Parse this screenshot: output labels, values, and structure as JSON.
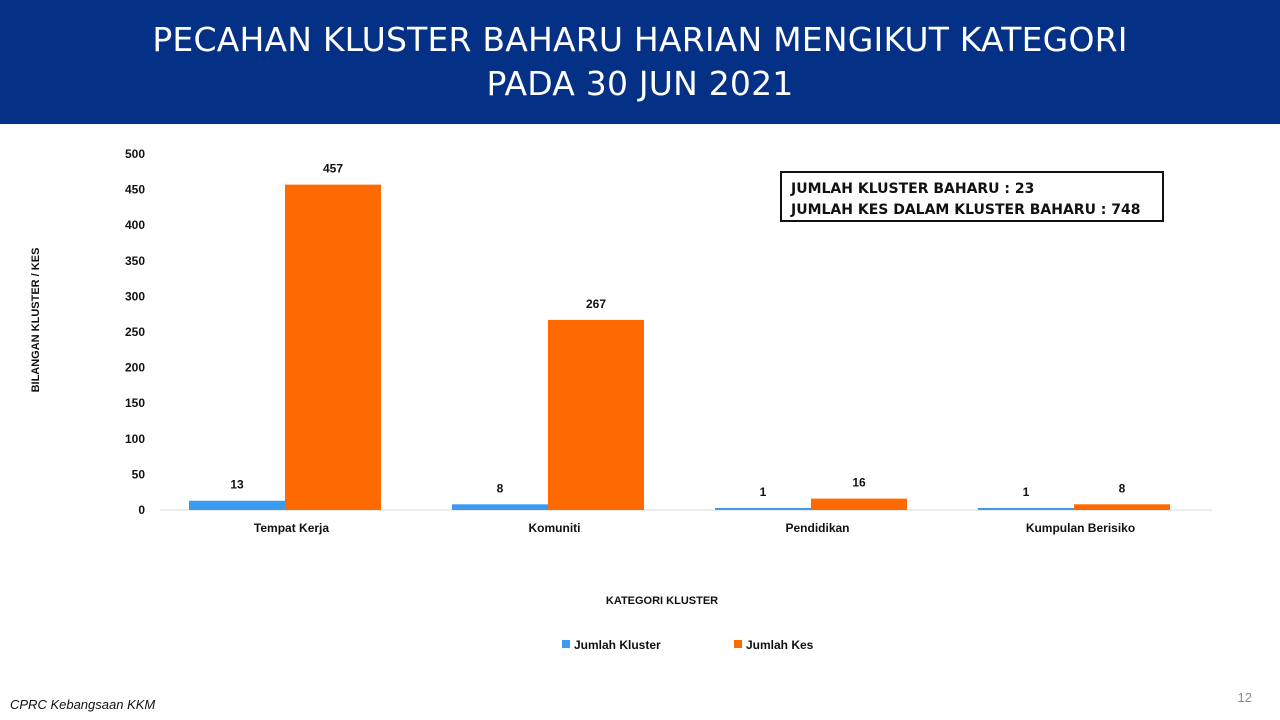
{
  "header": {
    "title_line1": "PECAHAN KLUSTER BAHARU HARIAN MENGIKUT KATEGORI",
    "title_line2": "PADA 30 JUN 2021"
  },
  "summary_box": {
    "line1": "JUMLAH KLUSTER BAHARU : 23",
    "line2": "JUMLAH KES DALAM KLUSTER BAHARU : 748"
  },
  "footer": {
    "source": "CPRC Kebangsaan KKM",
    "page_number": "12"
  },
  "colors": {
    "header_bg": "#043186",
    "series_kluster": "#3a9bf0",
    "series_kes": "#ff6a00"
  },
  "chart_data": {
    "type": "bar",
    "title": "",
    "xlabel": "KATEGORI KLUSTER",
    "ylabel": "BILANGAN KLUSTER / KES",
    "ylim": [
      0,
      500
    ],
    "yticks": [
      0,
      50,
      100,
      150,
      200,
      250,
      300,
      350,
      400,
      450,
      500
    ],
    "categories": [
      "Tempat Kerja",
      "Komuniti",
      "Pendidikan",
      "Kumpulan Berisiko"
    ],
    "series": [
      {
        "name": "Jumlah Kluster",
        "color": "#3a9bf0",
        "values": [
          13,
          8,
          1,
          1
        ]
      },
      {
        "name": "Jumlah Kes",
        "color": "#ff6a00",
        "values": [
          457,
          267,
          16,
          8
        ]
      }
    ],
    "grid": false,
    "legend": "bottom-center",
    "data_labels": true
  }
}
